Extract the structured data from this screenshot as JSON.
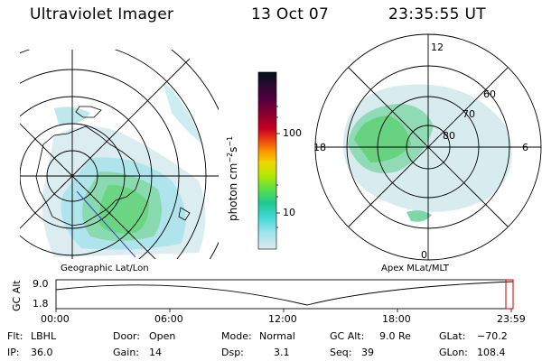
{
  "header": {
    "instrument": "Ultraviolet Imager",
    "date": "13 Oct 07",
    "time": "23:35:55 UT"
  },
  "left_panel": {
    "label": "Geographic Lat/Lon"
  },
  "right_panel": {
    "label": "Apex MLat/MLT",
    "mlt_labels": {
      "top": "12",
      "left": "18",
      "right": "6",
      "bottom": "0"
    },
    "lat_labels": [
      "60",
      "70",
      "80"
    ]
  },
  "colorbar": {
    "unit_text": "photon cm",
    "unit_exp1": "−2",
    "unit_mid": "s",
    "unit_exp2": "−1",
    "ticks": [
      "100",
      "10"
    ],
    "colors": [
      "#001018",
      "#2a0830",
      "#500040",
      "#8a0030",
      "#c80020",
      "#ee4a10",
      "#fa9a00",
      "#f2d400",
      "#b8e800",
      "#5ce04a",
      "#20c890",
      "#40d8d8",
      "#a0e6ee",
      "#e0e8ee"
    ]
  },
  "altitude_plot": {
    "ylabel": "GC Alt",
    "y_ticks": [
      "9.0",
      "1.8"
    ],
    "x_ticks": [
      "00:00",
      "06:00",
      "12:00",
      "18:00",
      "23:59"
    ]
  },
  "info": {
    "flt_label": "Flt:",
    "flt_value": "LBHL",
    "ip_label": "IP:",
    "ip_value": "36.0",
    "door_label": "Door:",
    "door_value": "Open",
    "gain_label": "Gain:",
    "gain_value": "14",
    "mode_label": "Mode:",
    "mode_value": "Normal",
    "dsp_label": "Dsp:",
    "dsp_value": "3.1",
    "gcalt_label": "GC Alt:",
    "gcalt_value": "9.0 Re",
    "seq_label": "Seq:",
    "seq_value": "39",
    "glat_label": "GLat:",
    "glat_value": "−70.2",
    "glon_label": "GLon:",
    "glon_value": "108.4"
  }
}
